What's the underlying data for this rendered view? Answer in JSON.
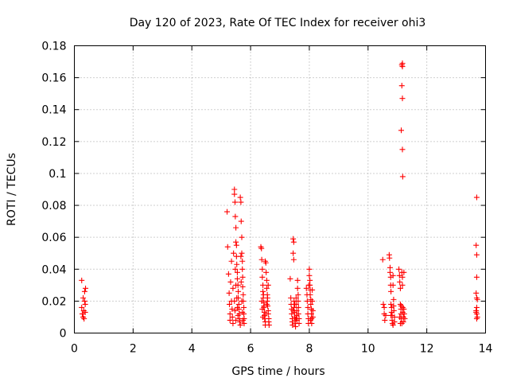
{
  "chart_data": {
    "type": "scatter",
    "title": "Day 120 of 2023, Rate Of TEC Index for receiver ohi3",
    "xlabel": "GPS time / hours",
    "ylabel": "ROTI / TECUs",
    "xlim": [
      0,
      14
    ],
    "ylim": [
      0,
      0.18
    ],
    "xticks": [
      "0",
      "2",
      "4",
      "6",
      "8",
      "10",
      "12",
      "14"
    ],
    "yticks": [
      "0",
      "0.02",
      "0.04",
      "0.06",
      "0.08",
      "0.1",
      "0.12",
      "0.14",
      "0.16",
      "0.18"
    ],
    "grid": true,
    "marker": "+",
    "color": "#ff0000",
    "series": [
      {
        "points": [
          [
            0.25,
            0.033
          ],
          [
            0.25,
            0.016
          ],
          [
            0.27,
            0.012
          ],
          [
            0.3,
            0.01
          ],
          [
            0.32,
            0.014
          ],
          [
            0.35,
            0.026
          ],
          [
            0.35,
            0.02
          ],
          [
            0.37,
            0.018
          ],
          [
            0.37,
            0.013
          ],
          [
            0.38,
            0.028
          ],
          [
            0.3,
            0.022
          ],
          [
            0.33,
            0.009
          ],
          [
            5.2,
            0.076
          ],
          [
            5.22,
            0.054
          ],
          [
            5.25,
            0.037
          ],
          [
            5.27,
            0.025
          ],
          [
            5.28,
            0.018
          ],
          [
            5.3,
            0.012
          ],
          [
            5.3,
            0.008
          ],
          [
            5.32,
            0.032
          ],
          [
            5.35,
            0.045
          ],
          [
            5.35,
            0.02
          ],
          [
            5.37,
            0.015
          ],
          [
            5.38,
            0.01
          ],
          [
            5.4,
            0.006
          ],
          [
            5.4,
            0.028
          ],
          [
            5.42,
            0.05
          ],
          [
            5.45,
            0.09
          ],
          [
            5.45,
            0.087
          ],
          [
            5.47,
            0.082
          ],
          [
            5.48,
            0.073
          ],
          [
            5.5,
            0.066
          ],
          [
            5.5,
            0.057
          ],
          [
            5.52,
            0.055
          ],
          [
            5.52,
            0.048
          ],
          [
            5.53,
            0.043
          ],
          [
            5.55,
            0.038
          ],
          [
            5.55,
            0.034
          ],
          [
            5.57,
            0.03
          ],
          [
            5.58,
            0.026
          ],
          [
            5.58,
            0.022
          ],
          [
            5.6,
            0.018
          ],
          [
            5.6,
            0.015
          ],
          [
            5.62,
            0.012
          ],
          [
            5.62,
            0.009
          ],
          [
            5.63,
            0.007
          ],
          [
            5.65,
            0.005
          ],
          [
            5.48,
            0.04
          ],
          [
            5.5,
            0.03
          ],
          [
            5.53,
            0.022
          ],
          [
            5.55,
            0.016
          ],
          [
            5.57,
            0.011
          ],
          [
            5.45,
            0.02
          ],
          [
            5.47,
            0.014
          ],
          [
            5.5,
            0.008
          ],
          [
            5.65,
            0.085
          ],
          [
            5.67,
            0.082
          ],
          [
            5.68,
            0.07
          ],
          [
            5.7,
            0.06
          ],
          [
            5.7,
            0.05
          ],
          [
            5.72,
            0.045
          ],
          [
            5.72,
            0.04
          ],
          [
            5.73,
            0.035
          ],
          [
            5.73,
            0.029
          ],
          [
            5.75,
            0.024
          ],
          [
            5.75,
            0.02
          ],
          [
            5.77,
            0.016
          ],
          [
            5.77,
            0.012
          ],
          [
            5.78,
            0.009
          ],
          [
            5.78,
            0.006
          ],
          [
            5.67,
            0.048
          ],
          [
            5.68,
            0.032
          ],
          [
            5.7,
            0.02
          ],
          [
            5.72,
            0.013
          ],
          [
            5.74,
            0.008
          ],
          [
            6.35,
            0.054
          ],
          [
            6.37,
            0.053
          ],
          [
            6.38,
            0.046
          ],
          [
            6.4,
            0.04
          ],
          [
            6.4,
            0.035
          ],
          [
            6.42,
            0.03
          ],
          [
            6.42,
            0.026
          ],
          [
            6.43,
            0.022
          ],
          [
            6.45,
            0.019
          ],
          [
            6.45,
            0.016
          ],
          [
            6.47,
            0.013
          ],
          [
            6.47,
            0.011
          ],
          [
            6.48,
            0.009
          ],
          [
            6.5,
            0.007
          ],
          [
            6.5,
            0.005
          ],
          [
            6.38,
            0.02
          ],
          [
            6.4,
            0.015
          ],
          [
            6.42,
            0.01
          ],
          [
            6.44,
            0.024
          ],
          [
            6.46,
            0.017
          ],
          [
            6.5,
            0.045
          ],
          [
            6.52,
            0.044
          ],
          [
            6.53,
            0.038
          ],
          [
            6.55,
            0.033
          ],
          [
            6.55,
            0.028
          ],
          [
            6.57,
            0.024
          ],
          [
            6.57,
            0.02
          ],
          [
            6.58,
            0.017
          ],
          [
            6.6,
            0.014
          ],
          [
            6.6,
            0.012
          ],
          [
            6.62,
            0.009
          ],
          [
            6.62,
            0.007
          ],
          [
            6.63,
            0.005
          ],
          [
            6.55,
            0.018
          ],
          [
            6.58,
            0.022
          ],
          [
            6.6,
            0.03
          ],
          [
            6.52,
            0.012
          ],
          [
            7.35,
            0.034
          ],
          [
            7.37,
            0.022
          ],
          [
            7.38,
            0.018
          ],
          [
            7.4,
            0.015
          ],
          [
            7.4,
            0.012
          ],
          [
            7.42,
            0.009
          ],
          [
            7.42,
            0.007
          ],
          [
            7.43,
            0.005
          ],
          [
            7.45,
            0.059
          ],
          [
            7.45,
            0.05
          ],
          [
            7.47,
            0.046
          ],
          [
            7.47,
            0.057
          ],
          [
            7.48,
            0.02
          ],
          [
            7.48,
            0.016
          ],
          [
            7.5,
            0.013
          ],
          [
            7.5,
            0.01
          ],
          [
            7.52,
            0.008
          ],
          [
            7.52,
            0.006
          ],
          [
            7.53,
            0.004
          ],
          [
            7.55,
            0.022
          ],
          [
            7.55,
            0.018
          ],
          [
            7.57,
            0.014
          ],
          [
            7.57,
            0.011
          ],
          [
            7.58,
            0.008
          ],
          [
            7.6,
            0.033
          ],
          [
            7.6,
            0.028
          ],
          [
            7.62,
            0.024
          ],
          [
            7.62,
            0.02
          ],
          [
            7.63,
            0.016
          ],
          [
            7.63,
            0.012
          ],
          [
            7.65,
            0.009
          ],
          [
            7.65,
            0.006
          ],
          [
            7.45,
            0.014
          ],
          [
            7.5,
            0.018
          ],
          [
            7.55,
            0.009
          ],
          [
            7.9,
            0.028
          ],
          [
            7.92,
            0.024
          ],
          [
            7.93,
            0.02
          ],
          [
            7.95,
            0.016
          ],
          [
            7.95,
            0.012
          ],
          [
            7.97,
            0.009
          ],
          [
            7.97,
            0.006
          ],
          [
            8.0,
            0.04
          ],
          [
            8.0,
            0.036
          ],
          [
            8.02,
            0.033
          ],
          [
            8.02,
            0.03
          ],
          [
            8.03,
            0.027
          ],
          [
            8.03,
            0.024
          ],
          [
            8.05,
            0.021
          ],
          [
            8.05,
            0.018
          ],
          [
            8.07,
            0.015
          ],
          [
            8.07,
            0.012
          ],
          [
            8.08,
            0.009
          ],
          [
            8.08,
            0.006
          ],
          [
            8.1,
            0.027
          ],
          [
            8.1,
            0.02
          ],
          [
            8.12,
            0.014
          ],
          [
            8.12,
            0.01
          ],
          [
            7.98,
            0.03
          ],
          [
            8.04,
            0.008
          ],
          [
            10.5,
            0.046
          ],
          [
            10.52,
            0.018
          ],
          [
            10.55,
            0.012
          ],
          [
            10.57,
            0.008
          ],
          [
            10.55,
            0.016
          ],
          [
            10.6,
            0.011
          ],
          [
            10.72,
            0.049
          ],
          [
            10.73,
            0.047
          ],
          [
            10.75,
            0.041
          ],
          [
            10.75,
            0.038
          ],
          [
            10.77,
            0.035
          ],
          [
            10.77,
            0.03
          ],
          [
            10.78,
            0.026
          ],
          [
            10.78,
            0.018
          ],
          [
            10.8,
            0.016
          ],
          [
            10.8,
            0.013
          ],
          [
            10.82,
            0.011
          ],
          [
            10.82,
            0.008
          ],
          [
            10.83,
            0.006
          ],
          [
            10.85,
            0.036
          ],
          [
            10.85,
            0.03
          ],
          [
            10.87,
            0.021
          ],
          [
            10.87,
            0.017
          ],
          [
            10.88,
            0.014
          ],
          [
            10.9,
            0.01
          ],
          [
            10.9,
            0.007
          ],
          [
            10.78,
            0.011
          ],
          [
            10.85,
            0.005
          ],
          [
            11.15,
            0.168
          ],
          [
            11.17,
            0.169
          ],
          [
            11.17,
            0.167
          ],
          [
            11.15,
            0.155
          ],
          [
            11.17,
            0.147
          ],
          [
            11.13,
            0.127
          ],
          [
            11.17,
            0.115
          ],
          [
            11.18,
            0.098
          ],
          [
            11.05,
            0.04
          ],
          [
            11.07,
            0.036
          ],
          [
            11.08,
            0.032
          ],
          [
            11.1,
            0.028
          ],
          [
            11.1,
            0.018
          ],
          [
            11.12,
            0.015
          ],
          [
            11.12,
            0.012
          ],
          [
            11.13,
            0.009
          ],
          [
            11.15,
            0.006
          ],
          [
            11.15,
            0.038
          ],
          [
            11.17,
            0.035
          ],
          [
            11.17,
            0.03
          ],
          [
            11.18,
            0.016
          ],
          [
            11.18,
            0.013
          ],
          [
            11.2,
            0.01
          ],
          [
            11.2,
            0.007
          ],
          [
            11.22,
            0.038
          ],
          [
            11.22,
            0.015
          ],
          [
            11.23,
            0.012
          ],
          [
            11.25,
            0.009
          ],
          [
            11.08,
            0.01
          ],
          [
            11.1,
            0.006
          ],
          [
            11.13,
            0.017
          ],
          [
            13.7,
            0.085
          ],
          [
            13.68,
            0.055
          ],
          [
            13.7,
            0.049
          ],
          [
            13.7,
            0.035
          ],
          [
            13.68,
            0.025
          ],
          [
            13.7,
            0.022
          ],
          [
            13.72,
            0.021
          ],
          [
            13.7,
            0.016
          ],
          [
            13.68,
            0.014
          ],
          [
            13.7,
            0.012
          ],
          [
            13.72,
            0.01
          ],
          [
            13.7,
            0.009
          ],
          [
            13.68,
            0.013
          ]
        ]
      }
    ]
  }
}
